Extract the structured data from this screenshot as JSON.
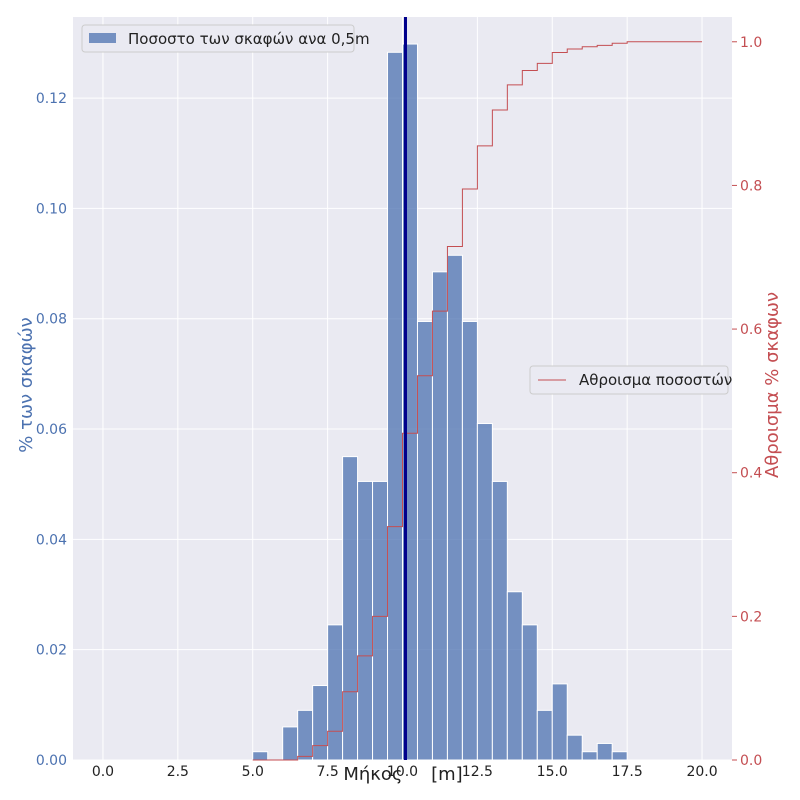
{
  "chart_data": {
    "type": "bar",
    "title": "",
    "xlabel": "Μήκος     [m]",
    "ylabel_left": "% των σκαφών",
    "ylabel_right": "Αθροισμα % σκαφων",
    "xlim": [
      -1.0,
      21.0
    ],
    "ylim_left": [
      0,
      0.1347
    ],
    "ylim_right": [
      0,
      1.0345
    ],
    "x_ticks": [
      0.0,
      2.5,
      5.0,
      7.5,
      10.0,
      12.5,
      15.0,
      17.5,
      20.0
    ],
    "x_tick_labels": [
      "0.0",
      "2.5",
      "5.0",
      "7.5",
      "10.0",
      "12.5",
      "15.0",
      "17.5",
      "20.0"
    ],
    "y_left_ticks": [
      0.0,
      0.02,
      0.04,
      0.06,
      0.08,
      0.1,
      0.12
    ],
    "y_left_tick_labels": [
      "0.00",
      "0.02",
      "0.04",
      "0.06",
      "0.08",
      "0.10",
      "0.12"
    ],
    "y_right_ticks": [
      0.0,
      0.2,
      0.4,
      0.6,
      0.8,
      1.0
    ],
    "y_right_tick_labels": [
      "0.0",
      "0.2",
      "0.4",
      "0.6",
      "0.8",
      "1.0"
    ],
    "grid": true,
    "histogram": {
      "name": "Ποσοστο των σκαφών ανα 0,5m",
      "bin_width": 0.5,
      "bin_starts": [
        5.0,
        5.5,
        6.0,
        6.5,
        7.0,
        7.5,
        8.0,
        8.5,
        9.0,
        9.5,
        10.0,
        10.5,
        11.0,
        11.5,
        12.0,
        12.5,
        13.0,
        13.5,
        14.0,
        14.5,
        15.0,
        15.5,
        16.0,
        16.5,
        17.0
      ],
      "values": [
        0.0015,
        0.0,
        0.006,
        0.009,
        0.0135,
        0.0245,
        0.055,
        0.0505,
        0.0505,
        0.1283,
        0.1298,
        0.0795,
        0.0885,
        0.0915,
        0.0795,
        0.061,
        0.0505,
        0.0305,
        0.0245,
        0.009,
        0.0138,
        0.0045,
        0.0015,
        0.003,
        0.0015
      ],
      "color": "#4c72b0"
    },
    "cumulative": {
      "name": "Αθροισμα ποσοστών",
      "x": [
        5.0,
        5.5,
        6.0,
        6.5,
        7.0,
        7.5,
        8.0,
        8.5,
        9.0,
        9.5,
        10.0,
        10.5,
        11.0,
        11.5,
        12.0,
        12.5,
        13.0,
        13.5,
        14.0,
        14.5,
        15.0,
        15.5,
        16.0,
        16.5,
        17.0,
        17.5,
        18.0,
        18.5,
        19.0,
        19.5,
        20.0
      ],
      "y": [
        0.0,
        0.0,
        0.0,
        0.005,
        0.02,
        0.04,
        0.095,
        0.145,
        0.2,
        0.325,
        0.455,
        0.535,
        0.625,
        0.715,
        0.795,
        0.855,
        0.905,
        0.94,
        0.96,
        0.97,
        0.985,
        0.99,
        0.993,
        0.995,
        0.998,
        1.0,
        1.0,
        1.0,
        1.0,
        1.0,
        1.0
      ],
      "color": "#c44e52"
    },
    "vline": {
      "x": 10.1,
      "color": "#00008b"
    },
    "legend_histogram_position": "top-left",
    "legend_cumulative_position": "center-right"
  }
}
